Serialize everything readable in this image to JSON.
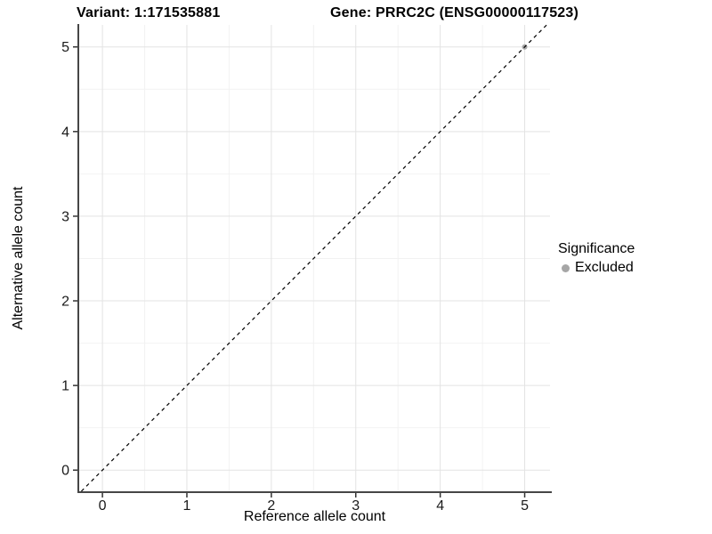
{
  "header": {
    "title_left": "Variant: 1:171535881",
    "title_right": "Gene: PRRC2C (ENSG00000117523)"
  },
  "chart_data": {
    "type": "scatter",
    "title": "Variant: 1:171535881 | Gene: PRRC2C (ENSG00000117523)",
    "xlabel": "Reference allele count",
    "ylabel": "Alternative allele count",
    "xlim": [
      -0.275,
      5.3
    ],
    "ylim": [
      -0.25,
      5.26
    ],
    "xticks": [
      0,
      1,
      2,
      3,
      4,
      5
    ],
    "yticks": [
      0,
      1,
      2,
      3,
      4,
      5
    ],
    "minor_grid_step": 0.5,
    "grid": "major+minor",
    "legend": {
      "title": "Significance",
      "position": "right",
      "items": [
        {
          "label": "Excluded",
          "color": "#a6a6a6"
        }
      ]
    },
    "series": [
      {
        "name": "Excluded",
        "color": "#a6a6a6",
        "marker": "circle",
        "points": [
          [
            5,
            5
          ]
        ]
      }
    ],
    "reference_line": {
      "kind": "identity y=x",
      "style": "dashed",
      "color": "#000000"
    }
  },
  "style": {
    "grid_major_color": "#e3e3e3",
    "grid_minor_color": "#f2f2f2",
    "axis_line_color": "#464646",
    "tick_mark_color": "#333333",
    "tick_label_color": "#1a1a1a",
    "background": "#ffffff"
  }
}
